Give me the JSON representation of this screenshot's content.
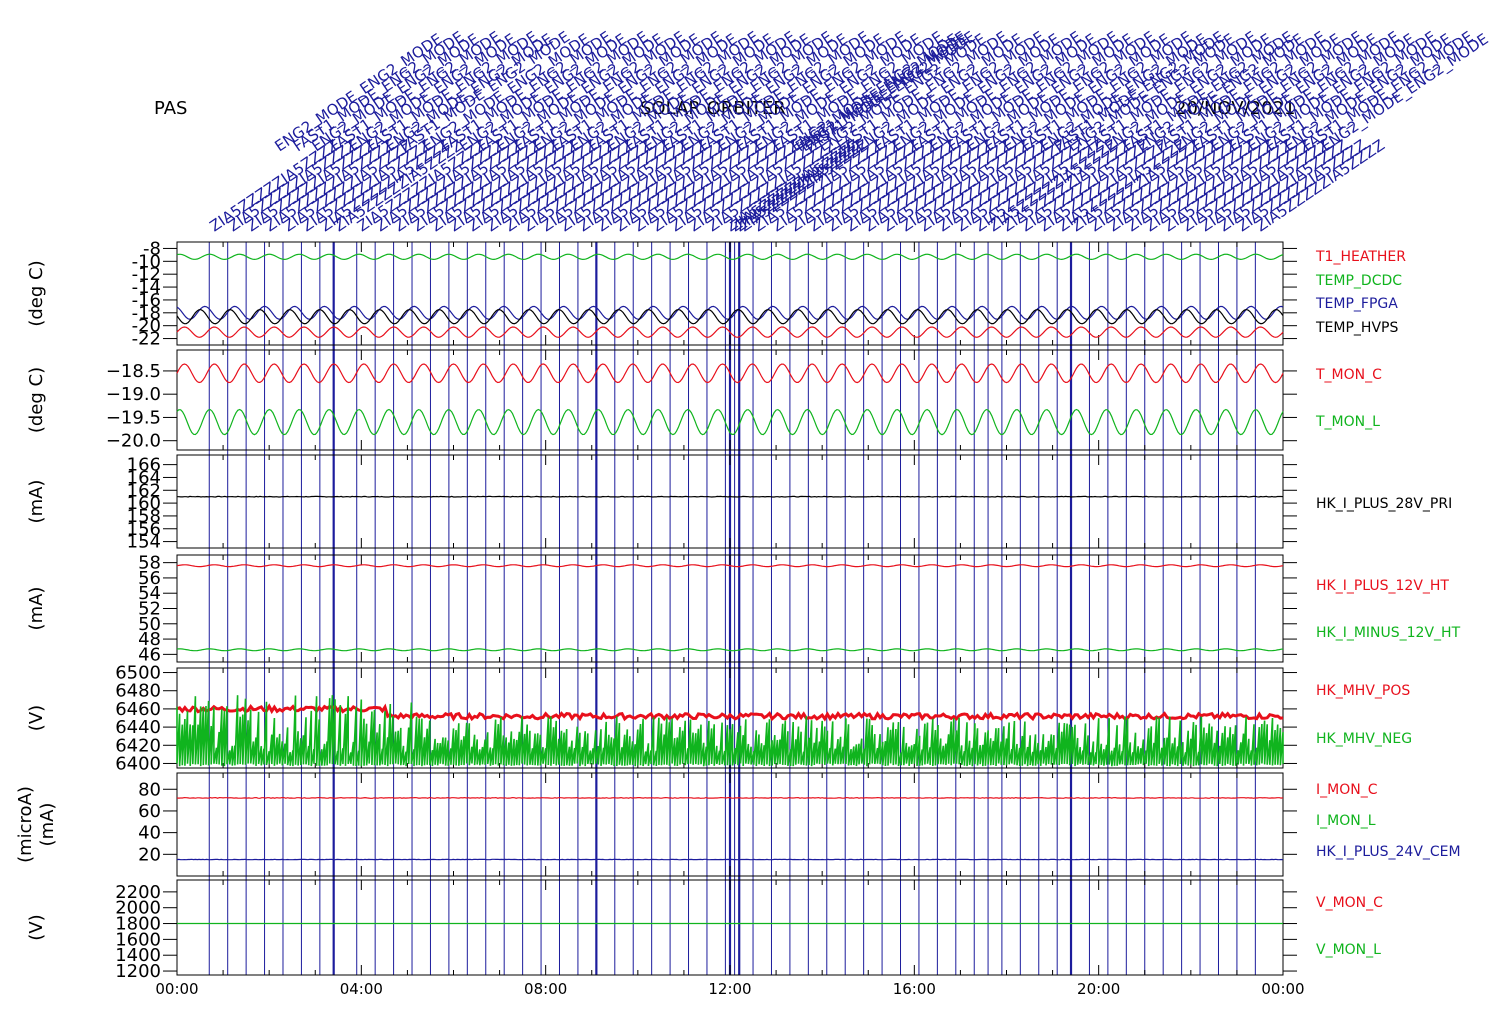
{
  "header": {
    "instrument": "PAS",
    "mission": "SOLAR ORBITER",
    "date": "20/NOV/2021"
  },
  "colors": {
    "red": "#e8101c",
    "green": "#10b41e",
    "blue": "#1c1c9c",
    "black": "#000000",
    "axis": "#000000"
  },
  "event_annotations": {
    "label_examples": [
      "ENG2_MODE",
      "FAST1_MODE",
      "ZIA5ZZZZ",
      "7"
    ],
    "note_count_shown_as_overlapping_rotated_text": true
  },
  "chart_data": [
    {
      "type": "line",
      "ylabel": "(deg C)",
      "yticks": [
        -8,
        -10,
        -12,
        -14,
        -16,
        -18,
        -20,
        -22
      ],
      "ytick_labels": [
        "-8",
        "-10",
        "-12",
        "-14",
        "-16",
        "-18",
        "-20",
        "-22"
      ],
      "ylim": [
        -23,
        -7
      ],
      "series": [
        {
          "name": "T1_HEATHER",
          "color": "#e8101c",
          "base": -21.0,
          "amplitude": 0.8,
          "cycles": 37
        },
        {
          "name": "TEMP_DCDC",
          "color": "#10b41e",
          "base": -9.3,
          "amplitude": 0.4,
          "cycles": 37
        },
        {
          "name": "TEMP_FPGA",
          "color": "#1c1c9c",
          "base": -18.0,
          "amplitude": 1.0,
          "cycles": 37
        },
        {
          "name": "TEMP_HVPS",
          "color": "#000000",
          "base": -18.6,
          "amplitude": 1.1,
          "cycles": 37
        }
      ]
    },
    {
      "type": "line",
      "ylabel": "(deg C)",
      "yticks": [
        -18.5,
        -19.0,
        -19.5,
        -20.0
      ],
      "ytick_labels": [
        "−18.5",
        "−19.0",
        "−19.5",
        "−20.0"
      ],
      "ylim": [
        -20.2,
        -18.05
      ],
      "series": [
        {
          "name": "T_MON_C",
          "color": "#e8101c",
          "base": -18.55,
          "amplitude": 0.2,
          "cycles": 37
        },
        {
          "name": "T_MON_L",
          "color": "#10b41e",
          "base": -19.6,
          "amplitude": 0.27,
          "cycles": 37
        }
      ]
    },
    {
      "type": "line",
      "ylabel": "(mA)",
      "yticks": [
        166,
        164,
        162,
        160,
        158,
        156,
        154
      ],
      "ytick_labels": [
        "166",
        "164",
        "162",
        "160",
        "158",
        "156",
        "154"
      ],
      "ylim": [
        153,
        167.5
      ],
      "series": [
        {
          "name": "HK_I_PLUS_28V_PRI",
          "color": "#000000",
          "base": 161.0,
          "amplitude": 0.05,
          "cycles": 0
        }
      ]
    },
    {
      "type": "line",
      "ylabel": "(mA)",
      "yticks": [
        58,
        56,
        54,
        52,
        50,
        48,
        46
      ],
      "ytick_labels": [
        "58",
        "56",
        "54",
        "52",
        "50",
        "48",
        "46"
      ],
      "ylim": [
        45,
        59
      ],
      "series": [
        {
          "name": "HK_I_PLUS_12V_HT",
          "color": "#e8101c",
          "base": 57.6,
          "amplitude": 0.12,
          "cycles": 37
        },
        {
          "name": "HK_I_MINUS_12V_HT",
          "color": "#10b41e",
          "base": 46.6,
          "amplitude": 0.12,
          "cycles": 37
        }
      ]
    },
    {
      "type": "area",
      "ylabel": "(V)",
      "yticks": [
        6500,
        6480,
        6460,
        6440,
        6420,
        6400
      ],
      "ytick_labels": [
        "6500",
        "6480",
        "6460",
        "6440",
        "6420",
        "6400"
      ],
      "ylim": [
        6395,
        6505
      ],
      "series": [
        {
          "name": "HK_MHV_POS",
          "color": "#e8101c",
          "base": 6452,
          "amplitude": 6
        },
        {
          "name": "HK_MHV_NEG",
          "color": "#10b41e",
          "base": 6412,
          "amplitude": 40
        }
      ]
    },
    {
      "type": "line",
      "ylabel": "(microA)\n(mA)",
      "yticks": [
        80,
        60,
        40,
        20
      ],
      "ytick_labels": [
        "80",
        "60",
        "40",
        "20"
      ],
      "ylim": [
        0,
        95
      ],
      "series": [
        {
          "name": "I_MON_C",
          "color": "#e8101c",
          "base": 72,
          "amplitude": 0.3,
          "cycles": 0
        },
        {
          "name": "I_MON_L",
          "color": "#10b41e",
          "base": null
        },
        {
          "name": "HK_I_PLUS_24V_CEM",
          "color": "#1c1c9c",
          "base": 15,
          "amplitude": 0.2,
          "cycles": 0
        }
      ]
    },
    {
      "type": "line",
      "ylabel": "(V)",
      "yticks": [
        2200,
        2000,
        1800,
        1600,
        1400,
        1200
      ],
      "ytick_labels": [
        "2200",
        "2000",
        "1800",
        "1600",
        "1400",
        "1200"
      ],
      "ylim": [
        1150,
        2350
      ],
      "series": [
        {
          "name": "V_MON_C",
          "color": "#e8101c",
          "base": null
        },
        {
          "name": "V_MON_L",
          "color": "#10b41e",
          "base": 1800,
          "amplitude": 0.5,
          "cycles": 0
        }
      ]
    }
  ],
  "x_axis": {
    "range_hours": [
      0,
      24
    ],
    "tick_labels": [
      "00:00",
      "04:00",
      "08:00",
      "12:00",
      "16:00",
      "20:00",
      "00:00"
    ],
    "event_times_hours": [
      0.7,
      1.1,
      1.5,
      1.9,
      2.3,
      2.7,
      3.1,
      3.4,
      3.9,
      4.3,
      4.7,
      5.1,
      5.5,
      5.9,
      6.3,
      6.7,
      7.1,
      7.5,
      7.9,
      8.3,
      8.7,
      9.1,
      9.5,
      9.9,
      10.3,
      10.7,
      11.1,
      11.5,
      11.9,
      12.0,
      12.1,
      12.2,
      12.5,
      12.9,
      13.3,
      13.7,
      14.1,
      14.5,
      14.9,
      15.3,
      15.7,
      16.1,
      16.5,
      16.9,
      17.3,
      17.6,
      17.9,
      18.3,
      18.7,
      19.1,
      19.4,
      19.8,
      20.2,
      20.6,
      21.0,
      21.4,
      21.8,
      22.2,
      22.6,
      23.0,
      23.4
    ],
    "bold_event_times_hours": [
      3.4,
      9.1,
      12.0,
      12.2,
      19.4
    ]
  }
}
